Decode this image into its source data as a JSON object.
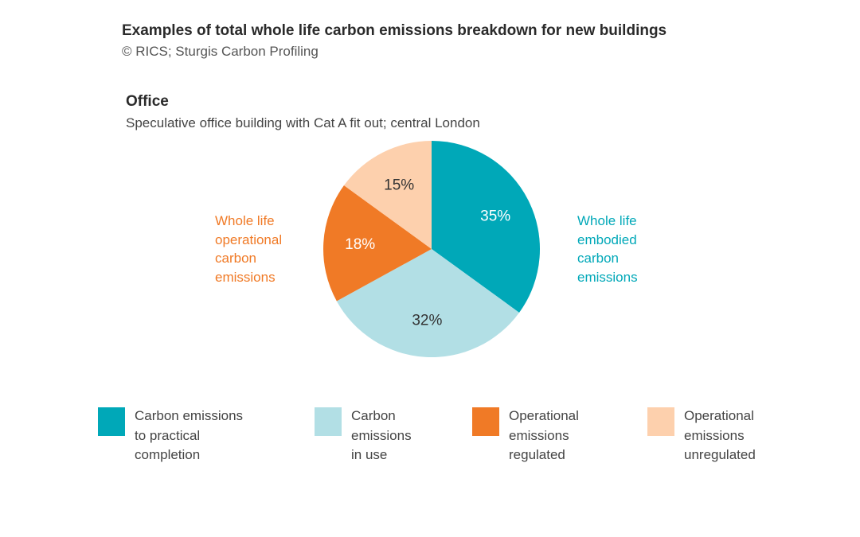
{
  "header": {
    "title": "Examples of total whole life carbon emissions breakdown for new buildings",
    "source": "©  RICS; Sturgis Carbon Profiling"
  },
  "chart_data": {
    "type": "pie",
    "title": "Office",
    "subtitle": "Speculative office building with Cat A fit out; central London",
    "slices": [
      {
        "name": "Carbon emissions to practical completion",
        "value": 35,
        "label": "35%",
        "color": "#00a8b8",
        "label_color": "#ffffff"
      },
      {
        "name": "Carbon emissions in use",
        "value": 32,
        "label": "32%",
        "color": "#b2dfe5",
        "label_color": "#333333"
      },
      {
        "name": "Operational emissions regulated",
        "value": 18,
        "label": "18%",
        "color": "#f07a26",
        "label_color": "#ffffff"
      },
      {
        "name": "Operational emissions unregulated",
        "value": 15,
        "label": "15%",
        "color": "#fdd0ad",
        "label_color": "#333333"
      }
    ],
    "group_labels": {
      "left": [
        "Whole life",
        "operational",
        "carbon",
        "emissions"
      ],
      "right": [
        "Whole life",
        "embodied",
        "carbon",
        "emissions"
      ]
    },
    "legend": {
      "position": "bottom",
      "items": [
        {
          "lines": [
            "Carbon emissions",
            "to practical",
            "completion"
          ],
          "color": "#00a8b8"
        },
        {
          "lines": [
            "Carbon",
            "emissions",
            "in use"
          ],
          "color": "#b2dfe5"
        },
        {
          "lines": [
            "Operational",
            "emissions",
            "regulated"
          ],
          "color": "#f07a26"
        },
        {
          "lines": [
            "Operational",
            "emissions",
            "unregulated"
          ],
          "color": "#fdd0ad"
        }
      ]
    }
  }
}
